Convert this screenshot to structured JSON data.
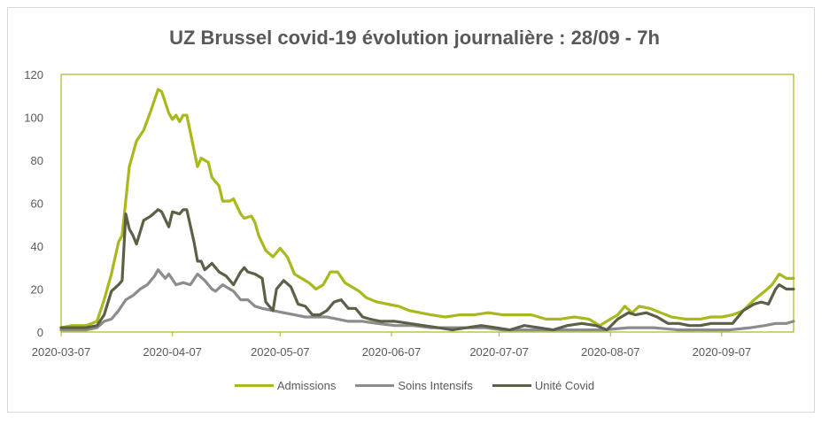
{
  "chart_data": {
    "type": "line",
    "title": "UZ Brussel covid-19 évolution journalière : 28/09 - 7h",
    "xlabel": "",
    "ylabel": "",
    "ylim": [
      0,
      120
    ],
    "yticks": [
      0,
      20,
      40,
      60,
      80,
      100,
      120
    ],
    "x_start": "2020-03-07",
    "x_end": "2020-09-27",
    "xticks": [
      "2020-03-07",
      "2020-04-07",
      "2020-05-07",
      "2020-06-07",
      "2020-07-07",
      "2020-08-07",
      "2020-09-07"
    ],
    "grid": false,
    "legend_position": "bottom",
    "series": [
      {
        "name": "Admissions",
        "color": "#a9b81c",
        "points": [
          [
            "2020-03-07",
            2
          ],
          [
            "2020-03-10",
            3
          ],
          [
            "2020-03-14",
            3
          ],
          [
            "2020-03-17",
            5
          ],
          [
            "2020-03-19",
            15
          ],
          [
            "2020-03-21",
            27
          ],
          [
            "2020-03-23",
            42
          ],
          [
            "2020-03-24",
            45
          ],
          [
            "2020-03-26",
            77
          ],
          [
            "2020-03-28",
            89
          ],
          [
            "2020-03-30",
            94
          ],
          [
            "2020-04-01",
            103
          ],
          [
            "2020-04-02",
            108
          ],
          [
            "2020-04-03",
            113
          ],
          [
            "2020-04-04",
            112
          ],
          [
            "2020-04-06",
            102
          ],
          [
            "2020-04-07",
            99
          ],
          [
            "2020-04-08",
            101
          ],
          [
            "2020-04-09",
            98
          ],
          [
            "2020-04-10",
            101
          ],
          [
            "2020-04-11",
            101
          ],
          [
            "2020-04-12",
            93
          ],
          [
            "2020-04-14",
            77
          ],
          [
            "2020-04-15",
            81
          ],
          [
            "2020-04-17",
            79
          ],
          [
            "2020-04-18",
            72
          ],
          [
            "2020-04-20",
            68
          ],
          [
            "2020-04-21",
            61
          ],
          [
            "2020-04-23",
            61
          ],
          [
            "2020-04-24",
            62
          ],
          [
            "2020-04-26",
            55
          ],
          [
            "2020-04-27",
            53
          ],
          [
            "2020-04-29",
            54
          ],
          [
            "2020-04-30",
            51
          ],
          [
            "2020-05-01",
            45
          ],
          [
            "2020-05-03",
            38
          ],
          [
            "2020-05-05",
            35
          ],
          [
            "2020-05-07",
            39
          ],
          [
            "2020-05-09",
            35
          ],
          [
            "2020-05-11",
            27
          ],
          [
            "2020-05-13",
            25
          ],
          [
            "2020-05-15",
            23
          ],
          [
            "2020-05-17",
            20
          ],
          [
            "2020-05-19",
            22
          ],
          [
            "2020-05-21",
            28
          ],
          [
            "2020-05-23",
            28
          ],
          [
            "2020-05-25",
            23
          ],
          [
            "2020-05-27",
            21
          ],
          [
            "2020-05-29",
            19
          ],
          [
            "2020-05-31",
            16
          ],
          [
            "2020-06-03",
            14
          ],
          [
            "2020-06-06",
            13
          ],
          [
            "2020-06-09",
            12
          ],
          [
            "2020-06-12",
            10
          ],
          [
            "2020-06-15",
            9
          ],
          [
            "2020-06-18",
            8
          ],
          [
            "2020-06-22",
            7
          ],
          [
            "2020-06-26",
            8
          ],
          [
            "2020-06-30",
            8
          ],
          [
            "2020-07-04",
            9
          ],
          [
            "2020-07-08",
            8
          ],
          [
            "2020-07-12",
            8
          ],
          [
            "2020-07-16",
            8
          ],
          [
            "2020-07-20",
            6
          ],
          [
            "2020-07-24",
            6
          ],
          [
            "2020-07-28",
            7
          ],
          [
            "2020-08-01",
            6
          ],
          [
            "2020-08-04",
            3
          ],
          [
            "2020-08-07",
            6
          ],
          [
            "2020-08-09",
            8
          ],
          [
            "2020-08-11",
            12
          ],
          [
            "2020-08-13",
            9
          ],
          [
            "2020-08-15",
            12
          ],
          [
            "2020-08-18",
            11
          ],
          [
            "2020-08-21",
            9
          ],
          [
            "2020-08-24",
            7
          ],
          [
            "2020-08-28",
            6
          ],
          [
            "2020-09-01",
            6
          ],
          [
            "2020-09-04",
            7
          ],
          [
            "2020-09-07",
            7
          ],
          [
            "2020-09-10",
            8
          ],
          [
            "2020-09-13",
            10
          ],
          [
            "2020-09-16",
            15
          ],
          [
            "2020-09-19",
            19
          ],
          [
            "2020-09-21",
            22
          ],
          [
            "2020-09-23",
            27
          ],
          [
            "2020-09-25",
            25
          ],
          [
            "2020-09-27",
            25
          ]
        ]
      },
      {
        "name": "Soins Intensifs",
        "color": "#8c8c8c",
        "points": [
          [
            "2020-03-07",
            1
          ],
          [
            "2020-03-10",
            1
          ],
          [
            "2020-03-14",
            1
          ],
          [
            "2020-03-17",
            2
          ],
          [
            "2020-03-19",
            5
          ],
          [
            "2020-03-21",
            6
          ],
          [
            "2020-03-23",
            10
          ],
          [
            "2020-03-25",
            15
          ],
          [
            "2020-03-27",
            17
          ],
          [
            "2020-03-29",
            20
          ],
          [
            "2020-03-31",
            22
          ],
          [
            "2020-04-02",
            26
          ],
          [
            "2020-04-03",
            29
          ],
          [
            "2020-04-05",
            25
          ],
          [
            "2020-04-06",
            27
          ],
          [
            "2020-04-08",
            22
          ],
          [
            "2020-04-10",
            23
          ],
          [
            "2020-04-12",
            22
          ],
          [
            "2020-04-14",
            27
          ],
          [
            "2020-04-16",
            24
          ],
          [
            "2020-04-18",
            20
          ],
          [
            "2020-04-19",
            19
          ],
          [
            "2020-04-21",
            22
          ],
          [
            "2020-04-22",
            21
          ],
          [
            "2020-04-24",
            19
          ],
          [
            "2020-04-26",
            15
          ],
          [
            "2020-04-28",
            15
          ],
          [
            "2020-04-30",
            12
          ],
          [
            "2020-05-02",
            11
          ],
          [
            "2020-05-05",
            10
          ],
          [
            "2020-05-08",
            9
          ],
          [
            "2020-05-11",
            8
          ],
          [
            "2020-05-14",
            7
          ],
          [
            "2020-05-17",
            7
          ],
          [
            "2020-05-20",
            7
          ],
          [
            "2020-05-23",
            6
          ],
          [
            "2020-05-26",
            5
          ],
          [
            "2020-05-30",
            5
          ],
          [
            "2020-06-03",
            4
          ],
          [
            "2020-06-08",
            3
          ],
          [
            "2020-06-13",
            3
          ],
          [
            "2020-06-18",
            2
          ],
          [
            "2020-06-23",
            2
          ],
          [
            "2020-06-28",
            2
          ],
          [
            "2020-07-03",
            2
          ],
          [
            "2020-07-08",
            1
          ],
          [
            "2020-07-15",
            1
          ],
          [
            "2020-07-22",
            1
          ],
          [
            "2020-07-29",
            1
          ],
          [
            "2020-08-05",
            1
          ],
          [
            "2020-08-12",
            2
          ],
          [
            "2020-08-19",
            2
          ],
          [
            "2020-08-26",
            1
          ],
          [
            "2020-09-02",
            1
          ],
          [
            "2020-09-09",
            1
          ],
          [
            "2020-09-15",
            2
          ],
          [
            "2020-09-19",
            3
          ],
          [
            "2020-09-22",
            4
          ],
          [
            "2020-09-25",
            4
          ],
          [
            "2020-09-27",
            5
          ]
        ]
      },
      {
        "name": "Unité Covid",
        "color": "#5d6047",
        "points": [
          [
            "2020-03-07",
            2
          ],
          [
            "2020-03-10",
            2
          ],
          [
            "2020-03-14",
            2
          ],
          [
            "2020-03-17",
            3
          ],
          [
            "2020-03-19",
            8
          ],
          [
            "2020-03-21",
            19
          ],
          [
            "2020-03-23",
            22
          ],
          [
            "2020-03-24",
            24
          ],
          [
            "2020-03-25",
            55
          ],
          [
            "2020-03-26",
            48
          ],
          [
            "2020-03-27",
            45
          ],
          [
            "2020-03-28",
            41
          ],
          [
            "2020-03-30",
            52
          ],
          [
            "2020-04-01",
            54
          ],
          [
            "2020-04-03",
            57
          ],
          [
            "2020-04-04",
            56
          ],
          [
            "2020-04-06",
            49
          ],
          [
            "2020-04-07",
            56
          ],
          [
            "2020-04-09",
            55
          ],
          [
            "2020-04-10",
            57
          ],
          [
            "2020-04-11",
            57
          ],
          [
            "2020-04-13",
            42
          ],
          [
            "2020-04-14",
            33
          ],
          [
            "2020-04-15",
            33
          ],
          [
            "2020-04-16",
            29
          ],
          [
            "2020-04-18",
            32
          ],
          [
            "2020-04-20",
            28
          ],
          [
            "2020-04-22",
            26
          ],
          [
            "2020-04-24",
            22
          ],
          [
            "2020-04-26",
            28
          ],
          [
            "2020-04-27",
            30
          ],
          [
            "2020-04-28",
            28
          ],
          [
            "2020-04-30",
            27
          ],
          [
            "2020-05-02",
            25
          ],
          [
            "2020-05-03",
            14
          ],
          [
            "2020-05-05",
            10
          ],
          [
            "2020-05-06",
            20
          ],
          [
            "2020-05-08",
            24
          ],
          [
            "2020-05-10",
            21
          ],
          [
            "2020-05-12",
            13
          ],
          [
            "2020-05-14",
            12
          ],
          [
            "2020-05-16",
            8
          ],
          [
            "2020-05-18",
            8
          ],
          [
            "2020-05-20",
            10
          ],
          [
            "2020-05-22",
            14
          ],
          [
            "2020-05-24",
            15
          ],
          [
            "2020-05-26",
            11
          ],
          [
            "2020-05-28",
            11
          ],
          [
            "2020-05-30",
            7
          ],
          [
            "2020-06-01",
            6
          ],
          [
            "2020-06-04",
            5
          ],
          [
            "2020-06-08",
            5
          ],
          [
            "2020-06-12",
            4
          ],
          [
            "2020-06-16",
            3
          ],
          [
            "2020-06-20",
            2
          ],
          [
            "2020-06-24",
            1
          ],
          [
            "2020-06-28",
            2
          ],
          [
            "2020-07-02",
            3
          ],
          [
            "2020-07-06",
            2
          ],
          [
            "2020-07-10",
            1
          ],
          [
            "2020-07-14",
            3
          ],
          [
            "2020-07-18",
            2
          ],
          [
            "2020-07-22",
            1
          ],
          [
            "2020-07-26",
            3
          ],
          [
            "2020-07-30",
            4
          ],
          [
            "2020-08-03",
            3
          ],
          [
            "2020-08-06",
            1
          ],
          [
            "2020-08-09",
            6
          ],
          [
            "2020-08-12",
            9
          ],
          [
            "2020-08-14",
            8
          ],
          [
            "2020-08-17",
            9
          ],
          [
            "2020-08-20",
            7
          ],
          [
            "2020-08-23",
            4
          ],
          [
            "2020-08-26",
            4
          ],
          [
            "2020-08-29",
            3
          ],
          [
            "2020-09-01",
            3
          ],
          [
            "2020-09-04",
            4
          ],
          [
            "2020-09-07",
            4
          ],
          [
            "2020-09-10",
            4
          ],
          [
            "2020-09-13",
            10
          ],
          [
            "2020-09-16",
            13
          ],
          [
            "2020-09-18",
            14
          ],
          [
            "2020-09-20",
            13
          ],
          [
            "2020-09-22",
            20
          ],
          [
            "2020-09-23",
            22
          ],
          [
            "2020-09-25",
            20
          ],
          [
            "2020-09-27",
            20
          ]
        ]
      }
    ]
  },
  "colors": {
    "axis": "#a9b81c",
    "tick_text": "#595959"
  }
}
